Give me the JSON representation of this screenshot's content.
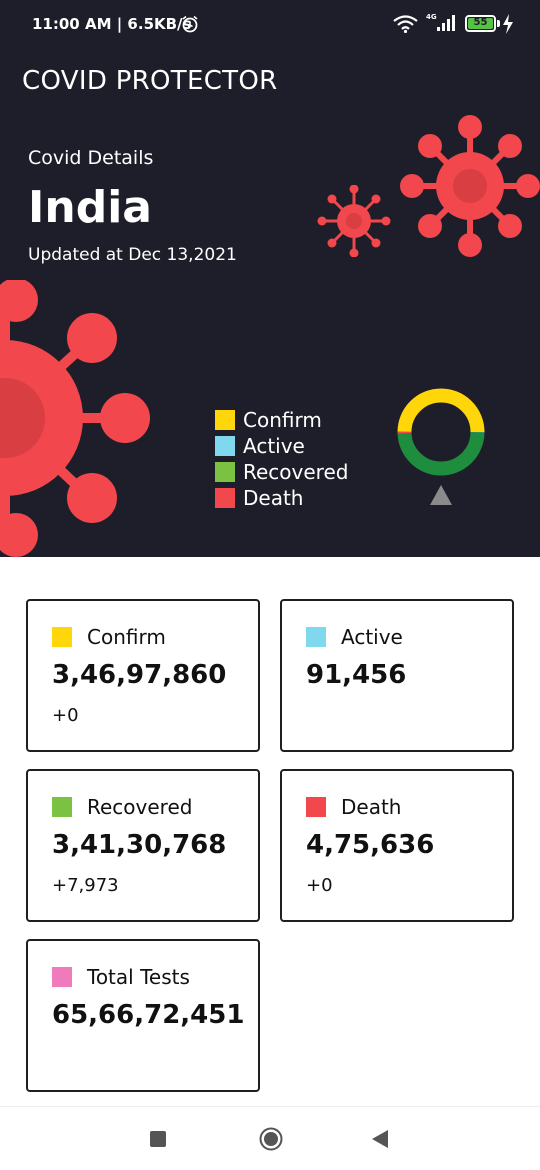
{
  "status_bar": {
    "time": "11:00 AM | 6.5KB/s",
    "network": "4G",
    "battery": "55"
  },
  "header": {
    "app_title": "COVID PROTECTOR",
    "section_label": "Covid Details",
    "country": "India",
    "updated": "Updated at Dec 13,2021"
  },
  "legend": [
    {
      "label": "Confirm",
      "color": "#FFD60A"
    },
    {
      "label": "Active",
      "color": "#7FD8EE"
    },
    {
      "label": "Recovered",
      "color": "#7CC242"
    },
    {
      "label": "Death",
      "color": "#F2474C"
    }
  ],
  "chart_data": {
    "type": "pie",
    "style": "donut",
    "categories": [
      "Confirm",
      "Active",
      "Recovered",
      "Death"
    ],
    "values": [
      34697860,
      91456,
      34130768,
      475636
    ],
    "colors": [
      "#FFD60A",
      "#7FD8EE",
      "#1E8E3E",
      "#F2474C"
    ]
  },
  "cards": [
    {
      "label": "Confirm",
      "value": "3,46,97,860",
      "delta": "+0",
      "color": "#FFD60A"
    },
    {
      "label": "Active",
      "value": "91,456",
      "delta": "",
      "color": "#7FD8EE"
    },
    {
      "label": "Recovered",
      "value": "3,41,30,768",
      "delta": "+7,973",
      "color": "#7CC242"
    },
    {
      "label": "Death",
      "value": "4,75,636",
      "delta": "+0",
      "color": "#F2474C"
    },
    {
      "label": "Total Tests",
      "value": "65,66,72,451",
      "delta": "",
      "color": "#F07BBA"
    }
  ],
  "colors": {
    "hero_bg": "#1E1E2A",
    "virus": "#F2474C"
  },
  "icons": {
    "alarm": "alarm-clock-icon",
    "wifi": "wifi-icon",
    "signal": "signal-icon",
    "charging": "bolt-icon",
    "expand": "triangle-up-icon",
    "nav_recent": "square-icon",
    "nav_home": "circle-icon",
    "nav_back": "back-triangle-icon"
  }
}
